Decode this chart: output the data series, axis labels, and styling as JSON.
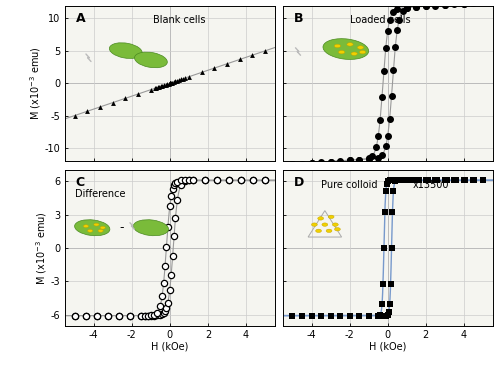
{
  "panel_A": {
    "label": "A",
    "title": "Blank cells",
    "ylim": [
      -12,
      12
    ],
    "yticks": [
      -10,
      -5,
      0,
      5,
      10
    ],
    "xlim": [
      -5.5,
      5.5
    ],
    "xticks": [
      -4,
      -2,
      0,
      2,
      4
    ]
  },
  "panel_B": {
    "label": "B",
    "title": "Loaded cells",
    "ylim": [
      -12,
      12
    ],
    "yticks": [
      -10,
      -5,
      0,
      5,
      10
    ],
    "xlim": [
      -5.5,
      5.5
    ],
    "xticks": [
      -4,
      -2,
      0,
      2,
      4
    ]
  },
  "panel_C": {
    "label": "C",
    "title": "Difference",
    "ylim": [
      -7,
      7
    ],
    "yticks": [
      -6,
      -3,
      0,
      3,
      6
    ],
    "xlim": [
      -5.5,
      5.5
    ],
    "xticks": [
      -4,
      -2,
      0,
      2,
      4
    ]
  },
  "panel_D": {
    "label": "D",
    "title": "Pure colloid",
    "annotation": "x13500",
    "ylim": [
      -7,
      7
    ],
    "yticks": [
      -6,
      -3,
      0,
      3,
      6
    ],
    "xlim": [
      -5.5,
      5.5
    ],
    "xticks": [
      -4,
      -2,
      0,
      2,
      4
    ]
  },
  "line_color": "#999999",
  "marker_color": "#000000",
  "blue_line_color": "#7799cc",
  "panel_bg": "#f5f5f0",
  "grid_color": "#cccccc",
  "axis_line_color": "#888888",
  "label_fontsize": 7,
  "title_fontsize": 7,
  "panel_label_fontsize": 9,
  "green_cell_color": "#7abb3a",
  "yellow_dot_color": "#f0d000",
  "cell_outline": "#4a8a20"
}
